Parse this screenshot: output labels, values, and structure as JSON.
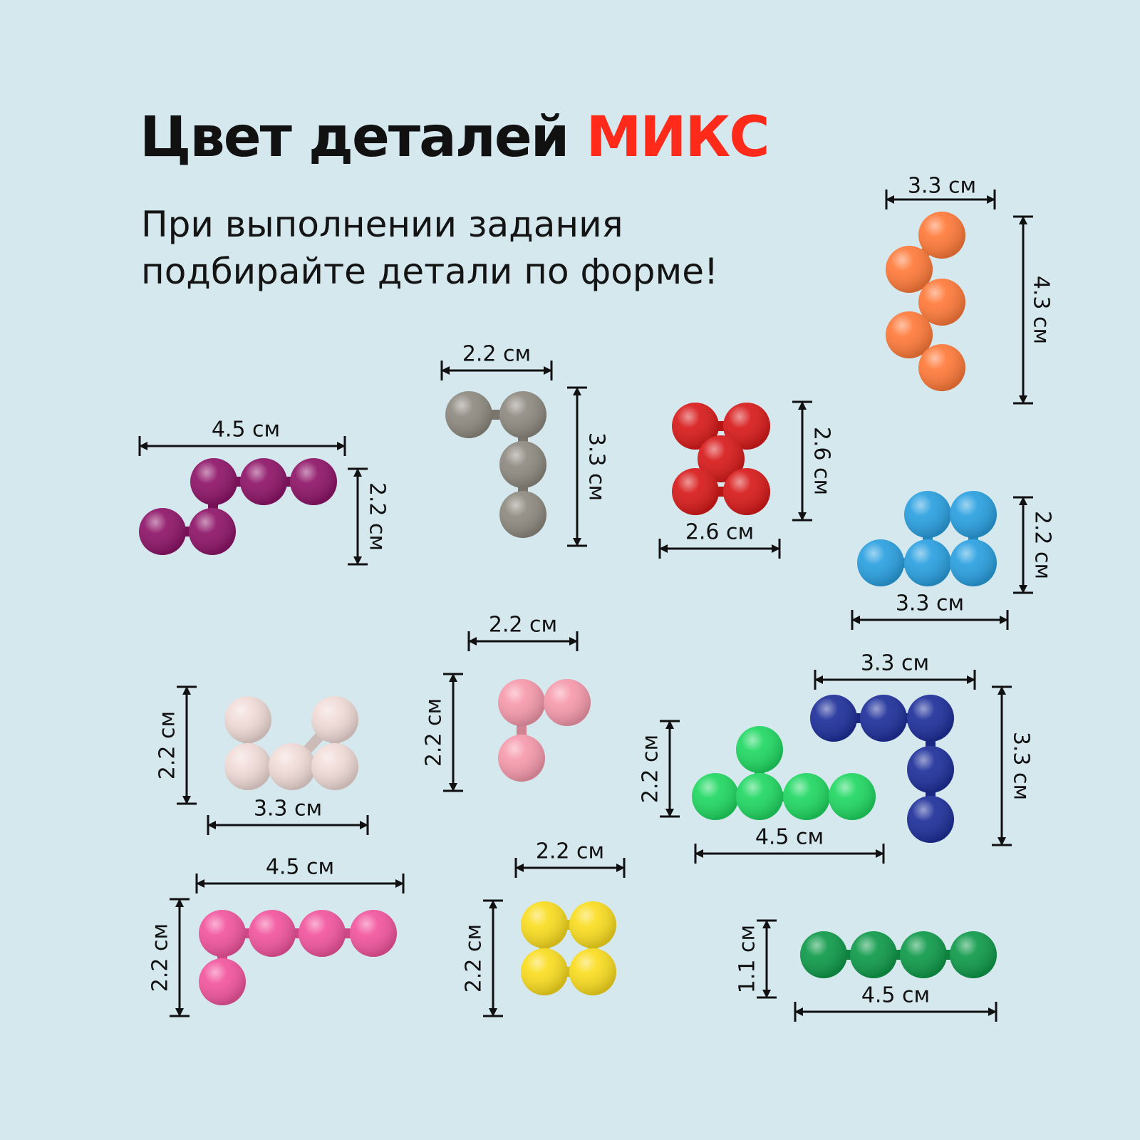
{
  "header": {
    "title_main": "Цвет деталей",
    "title_accent": "МИКС",
    "subtitle_line1": "При выполнении задания",
    "subtitle_line2": "подбирайте детали по форме!"
  },
  "colors": {
    "accent": "#ff2a1a",
    "background": "#d4e8ee"
  },
  "pieces": [
    {
      "id": "orange",
      "color": "#ff7a3a",
      "width_label": "3.3 см",
      "height_label": "4.3 см"
    },
    {
      "id": "purple",
      "color": "#8e1468",
      "width_label": "4.5 см",
      "height_label": "2.2 см"
    },
    {
      "id": "gray",
      "color": "#8e8a80",
      "width_label": "2.2 см",
      "height_label": "3.3 см"
    },
    {
      "id": "red",
      "color": "#d81a1a",
      "width_label": "2.6 см",
      "height_label": "2.6 см"
    },
    {
      "id": "light-blue",
      "color": "#2aa0e0",
      "width_label": "3.3 см",
      "height_label": "2.2 см"
    },
    {
      "id": "light-pink",
      "color": "#f1dcd8",
      "width_label": "3.3 см",
      "height_label": "2.2 см"
    },
    {
      "id": "pink",
      "color": "#f69aac",
      "width_label": "2.2 см",
      "height_label": "2.2 см"
    },
    {
      "id": "navy",
      "color": "#1e2f9a",
      "width_label": "3.3 см",
      "height_label": "3.3 см"
    },
    {
      "id": "lime-green",
      "color": "#20d862",
      "width_label": "4.5 см",
      "height_label": "2.2 см"
    },
    {
      "id": "magenta",
      "color": "#f2559e",
      "width_label": "4.5 см",
      "height_label": "2.2 см"
    },
    {
      "id": "yellow",
      "color": "#fadd20",
      "width_label": "2.2 см",
      "height_label": "2.2 см"
    },
    {
      "id": "dark-green",
      "color": "#0f9a4a",
      "width_label": "4.5 см",
      "height_label": "1.1 см"
    }
  ]
}
